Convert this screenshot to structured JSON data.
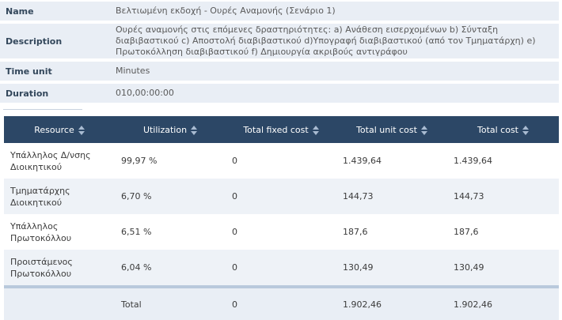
{
  "info": {
    "name_label": "Name",
    "name_value": "Βελτιωμένη εκδοχή - Ουρές Αναμονής (Σενάριο 1)",
    "description_label": "Description",
    "description_value": "Ουρές αναμονής στις επόμενες δραστηριότητες: a) Ανάθεση εισερχομένων b) Σύνταξη διαβιβαστικού c) Αποστολή διαβιβαστικού d)Υπογραφή διαβιβαστικού (από τον Τμηματάρχη) e) Πρωτοκόλληση διαβιβαστικού f) Δημιουργία ακριβούς αντιγράφου",
    "time_unit_label": "Time unit",
    "time_unit_value": "Minutes",
    "duration_label": "Duration",
    "duration_value": "010,00:00:00"
  },
  "table": {
    "headers": [
      "Resource",
      "Utilization",
      "Total fixed cost",
      "Total unit cost",
      "Total cost"
    ],
    "rows": [
      [
        "Υπάλληλος Δ/νσης Διοικητικού",
        "99,97 %",
        "0",
        "1.439,64",
        "1.439,64"
      ],
      [
        "Τμηματάρχης Διοικητικού",
        "6,70 %",
        "0",
        "144,73",
        "144,73"
      ],
      [
        "Υπάλληλος Πρωτοκόλλου",
        "6,51 %",
        "0",
        "187,6",
        "187,6"
      ],
      [
        "Προιστάμενος Πρωτοκόλλου",
        "6,04 %",
        "0",
        "130,49",
        "130,49"
      ]
    ],
    "footer": [
      "",
      "Total",
      "0",
      "1.902,46",
      "1.902,46"
    ]
  },
  "colors": {
    "header_bg": "#2c4766",
    "info_bg": "#e9eef5",
    "stripe_bg": "#eef2f7"
  },
  "icons": {
    "sort": "sort-arrows-icon"
  }
}
